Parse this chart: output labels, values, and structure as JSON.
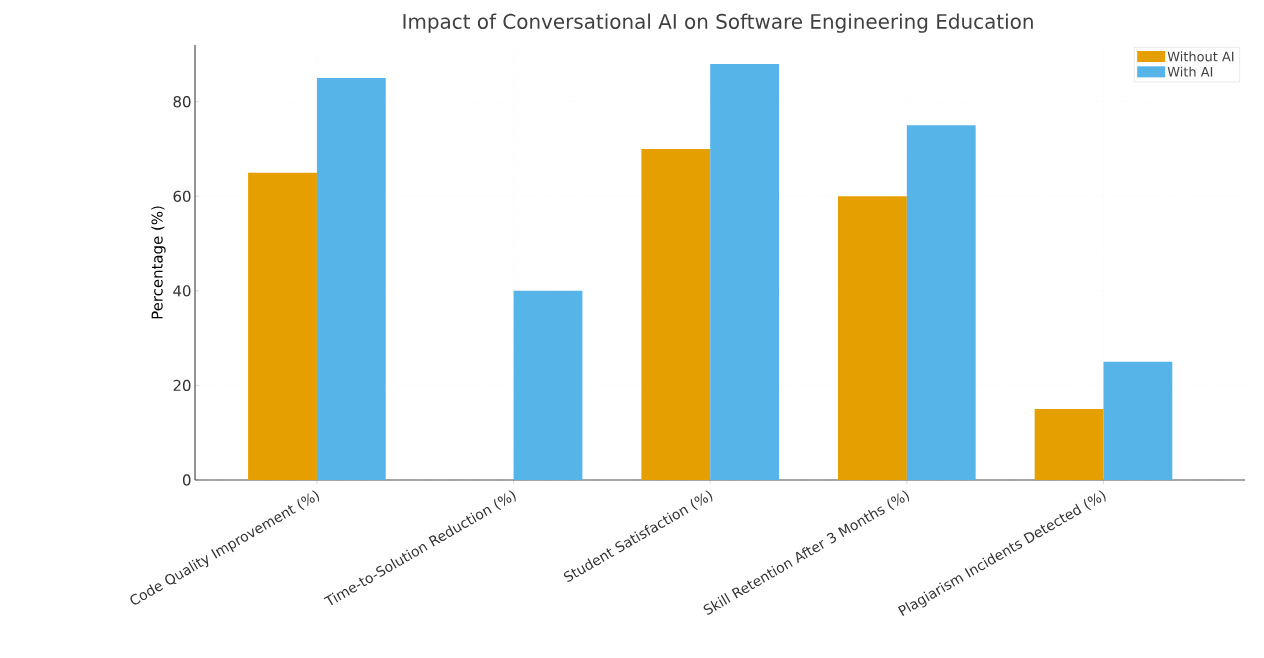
{
  "chart_data": {
    "type": "bar",
    "title": "Impact of Conversational AI on Software Engineering Education",
    "ylabel": "Percentage (%)",
    "categories": [
      "Code Quality Improvement (%)",
      "Time-to-Solution Reduction (%)",
      "Student Satisfaction (%)",
      "Skill Retention After 3 Months (%)",
      "Plagiarism Incidents Detected (%)"
    ],
    "series": [
      {
        "name": "Without AI",
        "color": "#e69f00",
        "values": [
          65,
          0,
          70,
          60,
          15
        ]
      },
      {
        "name": "With AI",
        "color": "#56b4e9",
        "values": [
          85,
          40,
          88,
          75,
          25
        ]
      }
    ],
    "ylim": [
      0,
      92
    ],
    "yticks": [
      0,
      20,
      40,
      60,
      80
    ],
    "grid": true,
    "legend": "top right"
  }
}
